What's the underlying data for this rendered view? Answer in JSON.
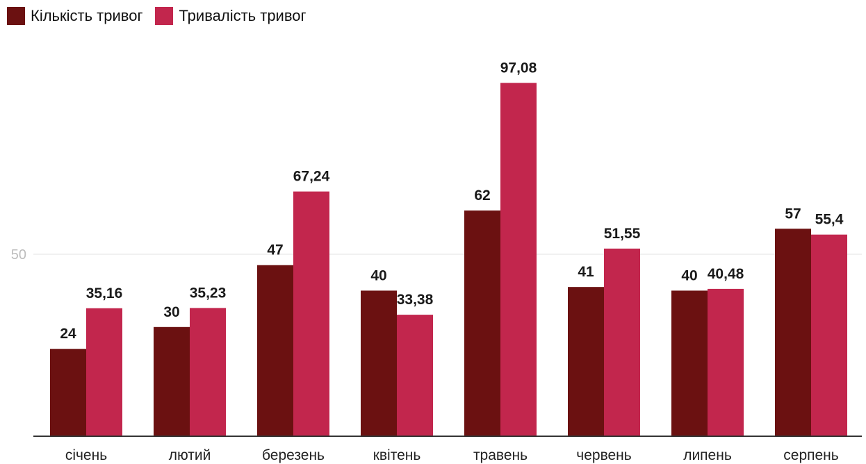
{
  "legend": {
    "items": [
      {
        "label": "Кількість тривог",
        "color": "#6b1111"
      },
      {
        "label": "Тривалість тривог",
        "color": "#c2264d"
      }
    ]
  },
  "chart_data": {
    "type": "bar",
    "categories": [
      "січень",
      "лютий",
      "березень",
      "квітень",
      "травень",
      "червень",
      "липень",
      "серпень"
    ],
    "series": [
      {
        "name": "Кількість тривог",
        "color": "#6b1111",
        "values": [
          24,
          30,
          47,
          40,
          62,
          41,
          40,
          57
        ],
        "labels": [
          "24",
          "30",
          "47",
          "40",
          "62",
          "41",
          "40",
          "57"
        ]
      },
      {
        "name": "Тривалість тривог",
        "color": "#c2264d",
        "values": [
          35.16,
          35.23,
          67.24,
          33.38,
          97.08,
          51.55,
          40.48,
          55.4
        ],
        "labels": [
          "35,16",
          "35,23",
          "67,24",
          "33,38",
          "97,08",
          "51,55",
          "40,48",
          "55,4"
        ]
      }
    ],
    "ylim": [
      0,
      109
    ],
    "yticks": [
      50
    ],
    "ytick_labels": [
      "50"
    ],
    "grid": true,
    "legend_position": "top-left",
    "title": "",
    "xlabel": "",
    "ylabel": ""
  }
}
